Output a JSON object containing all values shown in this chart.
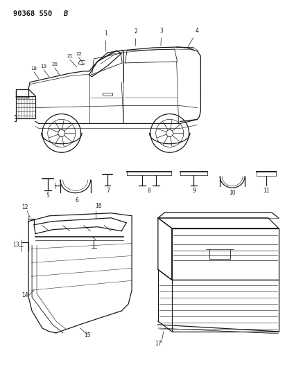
{
  "title": "90368 550B",
  "background_color": "#ffffff",
  "line_color": "#1a1a1a",
  "fig_width": 4.11,
  "fig_height": 5.33,
  "dpi": 100
}
